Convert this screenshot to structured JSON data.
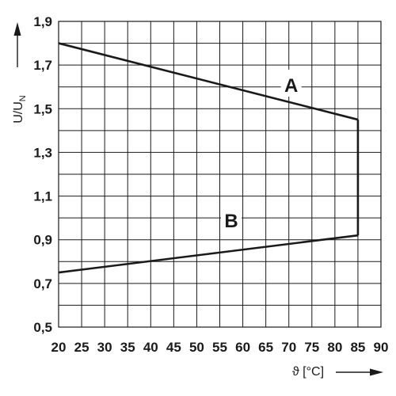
{
  "chart_data": {
    "type": "line",
    "xlabel": "ϑ [°C]",
    "ylabel": "U/U",
    "ylabel_subscript": "N",
    "xlim": [
      20,
      90
    ],
    "ylim": [
      0.5,
      1.9
    ],
    "x_ticks": [
      20,
      25,
      30,
      35,
      40,
      45,
      50,
      55,
      60,
      65,
      70,
      75,
      80,
      85,
      90
    ],
    "x_tick_labels": [
      "20",
      "25",
      "30",
      "35",
      "40",
      "45",
      "50",
      "55",
      "60",
      "65",
      "70",
      "75",
      "80",
      "85",
      "90"
    ],
    "y_ticks": [
      0.5,
      0.7,
      0.9,
      1.1,
      1.3,
      1.5,
      1.7,
      1.9
    ],
    "y_tick_labels": [
      "0,5",
      "0,7",
      "0,9",
      "1,1",
      "1,3",
      "1,5",
      "1,7",
      "1,9"
    ],
    "grid": true,
    "series": [
      {
        "name": "A",
        "x": [
          20,
          85
        ],
        "y": [
          1.8,
          1.45
        ]
      },
      {
        "name": "B",
        "x": [
          20,
          85
        ],
        "y": [
          0.75,
          0.92
        ]
      }
    ],
    "connector": {
      "x": [
        85,
        85
      ],
      "y": [
        1.45,
        0.92
      ]
    },
    "annotations": [
      {
        "text": "A",
        "x": 70.5,
        "y": 1.61
      },
      {
        "text": "B",
        "x": 57.5,
        "y": 0.99
      }
    ],
    "colors": {
      "line": "#1a1a1a",
      "grid": "#1a1a1a"
    }
  }
}
